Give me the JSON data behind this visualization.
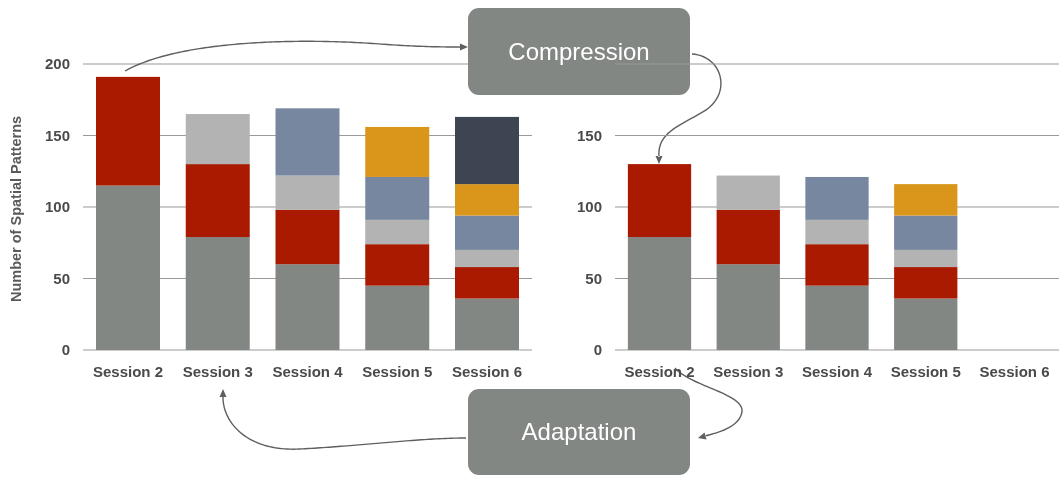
{
  "chart_data": [
    {
      "type": "bar",
      "stacked": true,
      "ylabel": "Number of Spatial Patterns",
      "categories": [
        "Session 2",
        "Session 3",
        "Session 4",
        "Session 5",
        "Session 6"
      ],
      "series": [
        {
          "color": "#828784",
          "values": [
            115,
            79,
            60,
            45,
            36
          ]
        },
        {
          "color": "#a91a00",
          "values": [
            76,
            51,
            38,
            29,
            22
          ]
        },
        {
          "color": "#b3b3b3",
          "values": [
            null,
            35,
            24,
            17,
            12
          ]
        },
        {
          "color": "#7787a0",
          "values": [
            null,
            null,
            47,
            30,
            24
          ]
        },
        {
          "color": "#d9961b",
          "values": [
            null,
            null,
            null,
            35,
            22
          ]
        },
        {
          "color": "#3d4452",
          "values": [
            null,
            null,
            null,
            null,
            47
          ]
        }
      ],
      "ylim": [
        0,
        200
      ],
      "yticks": [
        0,
        50,
        100,
        150,
        200
      ],
      "grid": "y",
      "annotations": [
        "Compression",
        "Adaptation"
      ]
    },
    {
      "type": "bar",
      "stacked": true,
      "categories": [
        "Session 2",
        "Session 3",
        "Session 4",
        "Session 5",
        "Session 6"
      ],
      "series": [
        {
          "color": "#828784",
          "values": [
            79,
            60,
            45,
            36,
            null
          ]
        },
        {
          "color": "#a91a00",
          "values": [
            51,
            38,
            29,
            22,
            null
          ]
        },
        {
          "color": "#b3b3b3",
          "values": [
            null,
            24,
            17,
            12,
            null
          ]
        },
        {
          "color": "#7787a0",
          "values": [
            null,
            null,
            30,
            24,
            null
          ]
        },
        {
          "color": "#d9961b",
          "values": [
            null,
            null,
            null,
            22,
            null
          ]
        }
      ],
      "ylim": [
        0,
        200
      ],
      "yticks": [
        0,
        50,
        100,
        150,
        {
          "value": 200,
          "label": null
        }
      ],
      "grid": "y"
    }
  ]
}
